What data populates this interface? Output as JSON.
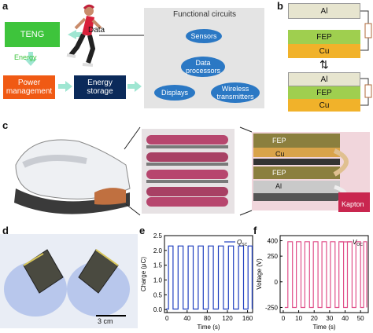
{
  "panel_a": {
    "label": "a",
    "teng": "TENG",
    "energy": "Energy",
    "power": "Power management",
    "storage": "Energy storage",
    "data": "Data",
    "functional_title": "Functional circuits",
    "sensors": "Sensors",
    "processors": "Data processors",
    "displays": "Displays",
    "wireless": "Wireless transmitters",
    "colors": {
      "teng": "#3ec43c",
      "power": "#f05a14",
      "storage": "#0b2a5a",
      "pill": "#2b78c4",
      "arrow": "#9fe6d2"
    }
  },
  "panel_b": {
    "label": "b",
    "top": [
      "Al",
      "FEP",
      "Cu"
    ],
    "bottom": [
      "Al",
      "FEP",
      "Cu"
    ],
    "swap_symbol": "⇅"
  },
  "panel_c": {
    "label": "c",
    "layers": [
      "FEP",
      "Cu",
      "FEP",
      "Al"
    ],
    "kapton": "Kapton"
  },
  "panel_d": {
    "label": "d",
    "scale": "3 cm"
  },
  "chart_data": [
    {
      "panel": "e",
      "type": "line",
      "xlabel": "Time (s)",
      "ylabel": "Charge (μC)",
      "legend": "Q",
      "legend_sub": "SC",
      "xlim": [
        -5,
        170
      ],
      "ylim": [
        -0.1,
        2.5
      ],
      "xticks": [
        0,
        40,
        80,
        120,
        160
      ],
      "yticks": [
        0.0,
        0.5,
        1.0,
        1.5,
        2.0,
        2.5
      ],
      "series": [
        {
          "name": "Q_SC",
          "color": "#1f3fbf",
          "low": 0.02,
          "high": 2.15,
          "pulses": [
            [
              3,
              12
            ],
            [
              22,
              32
            ],
            [
              42,
              52
            ],
            [
              62,
              72
            ],
            [
              82,
              92
            ],
            [
              102,
              112
            ],
            [
              122,
              132
            ],
            [
              142,
              152
            ],
            [
              161,
              169
            ]
          ]
        }
      ]
    },
    {
      "panel": "f",
      "type": "line",
      "xlabel": "Time (s)",
      "ylabel": "Voltage (V)",
      "legend": "V",
      "legend_sub": "OC",
      "xlim": [
        -2,
        55
      ],
      "ylim": [
        -300,
        450
      ],
      "xticks": [
        0,
        10,
        20,
        30,
        40,
        50
      ],
      "yticks": [
        -250,
        0,
        250,
        400
      ],
      "series": [
        {
          "name": "V_OC",
          "color": "#e0508a",
          "low": -250,
          "high": 390,
          "pulses": [
            [
              3,
              6
            ],
            [
              8.5,
              11.5
            ],
            [
              14,
              17
            ],
            [
              19.5,
              22.5
            ],
            [
              25,
              28
            ],
            [
              30.5,
              33.5
            ],
            [
              36,
              39
            ],
            [
              41.5,
              44.5
            ],
            [
              47,
              50
            ],
            [
              52,
              54
            ]
          ]
        }
      ]
    }
  ]
}
